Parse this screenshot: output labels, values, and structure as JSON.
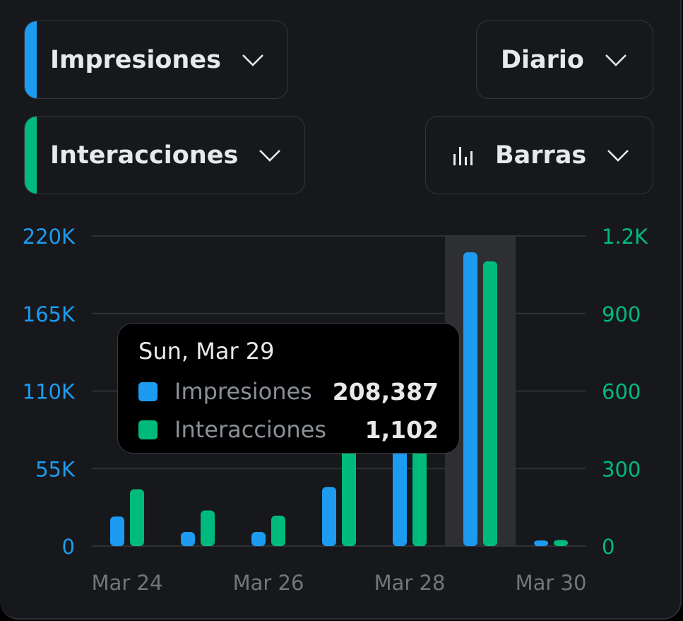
{
  "selectors": {
    "metric1": {
      "label": "Impresiones",
      "accent": "#1d9bf0"
    },
    "metric2": {
      "label": "Interacciones",
      "accent": "#00ba7c"
    },
    "interval": {
      "label": "Diario"
    },
    "chart_type": {
      "label": "Barras"
    }
  },
  "colors": {
    "impresiones": "#1d9bf0",
    "interacciones": "#00ba7c",
    "axis_text": "#71767b",
    "grid": "#2f3136",
    "highlight": "#2d2f33"
  },
  "tooltip": {
    "date": "Sun, Mar 29",
    "rows": [
      {
        "name": "Impresiones",
        "value": "208,387"
      },
      {
        "name": "Interacciones",
        "value": "1,102"
      }
    ]
  },
  "chart_data": {
    "type": "bar",
    "categories": [
      "Mar 24",
      "Mar 25",
      "Mar 26",
      "Mar 27",
      "Mar 28",
      "Mar 29",
      "Mar 30"
    ],
    "x_tick_labels": [
      "Mar 24",
      "Mar 26",
      "Mar 28",
      "Mar 30"
    ],
    "series": [
      {
        "name": "Impresiones",
        "axis": "left",
        "values": [
          21000,
          10000,
          10000,
          42000,
          75000,
          208387,
          4000
        ]
      },
      {
        "name": "Interacciones",
        "axis": "right",
        "values": [
          220,
          138,
          118,
          460,
          640,
          1102,
          24
        ]
      }
    ],
    "left_axis": {
      "ylim": [
        0,
        220000
      ],
      "tick_labels": [
        "0",
        "55K",
        "110K",
        "165K",
        "220K"
      ]
    },
    "right_axis": {
      "ylim": [
        0,
        1200
      ],
      "tick_labels": [
        "0",
        "300",
        "600",
        "900",
        "1.2K"
      ]
    },
    "highlighted_category": "Mar 29",
    "grid": true
  }
}
